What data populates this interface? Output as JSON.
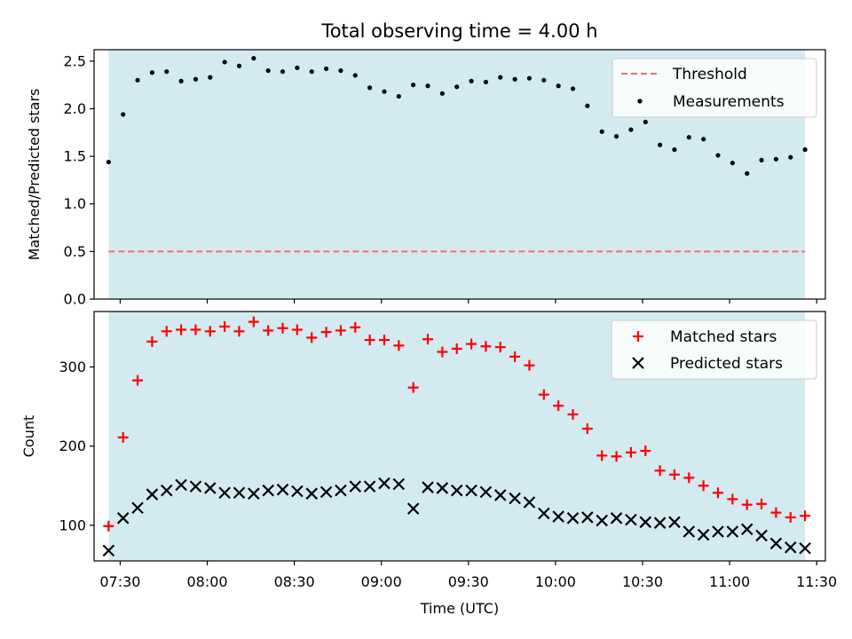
{
  "chart_data": {
    "title": "Total observing time = 4.00 h",
    "xlabel": "Time (UTC)",
    "x_tick_labels": [
      "07:30",
      "08:00",
      "08:30",
      "09:00",
      "09:30",
      "10:00",
      "10:30",
      "11:00",
      "11:30"
    ],
    "shaded_span": [
      "07:26",
      "11:26"
    ],
    "shade_color": "#d3eaf0",
    "panels": [
      {
        "type": "scatter",
        "ylabel": "Matched/Predicted stars",
        "ylim": [
          0,
          2.62
        ],
        "y_ticks": [
          0.0,
          0.5,
          1.0,
          1.5,
          2.0,
          2.5
        ],
        "y_tick_labels": [
          "0.0",
          "0.5",
          "1.0",
          "1.5",
          "2.0",
          "2.5"
        ],
        "legend": [
          "Threshold",
          "Measurements"
        ],
        "threshold": {
          "name": "Threshold",
          "y": 0.5,
          "x": [
            "07:26",
            "11:26"
          ],
          "color": "#f07070",
          "style": "dashed"
        },
        "series": [
          {
            "name": "Measurements",
            "marker": "dot",
            "color": "#000000",
            "x": [
              "07:26",
              "07:31",
              "07:36",
              "07:41",
              "07:46",
              "07:51",
              "07:56",
              "08:01",
              "08:06",
              "08:11",
              "08:16",
              "08:21",
              "08:26",
              "08:31",
              "08:36",
              "08:41",
              "08:46",
              "08:51",
              "08:56",
              "09:01",
              "09:06",
              "09:11",
              "09:16",
              "09:21",
              "09:26",
              "09:31",
              "09:36",
              "09:41",
              "09:46",
              "09:51",
              "09:56",
              "10:01",
              "10:06",
              "10:11",
              "10:16",
              "10:21",
              "10:26",
              "10:31",
              "10:36",
              "10:41",
              "10:46",
              "10:51",
              "10:56",
              "11:01",
              "11:06",
              "11:11",
              "11:16",
              "11:21",
              "11:26"
            ],
            "y": [
              1.44,
              1.94,
              2.3,
              2.38,
              2.39,
              2.29,
              2.31,
              2.33,
              2.49,
              2.45,
              2.53,
              2.4,
              2.39,
              2.43,
              2.39,
              2.42,
              2.4,
              2.35,
              2.22,
              2.18,
              2.13,
              2.25,
              2.24,
              2.16,
              2.23,
              2.29,
              2.28,
              2.33,
              2.31,
              2.32,
              2.3,
              2.24,
              2.21,
              2.03,
              1.76,
              1.71,
              1.78,
              1.86,
              1.62,
              1.57,
              1.7,
              1.68,
              1.51,
              1.43,
              1.32,
              1.46,
              1.47,
              1.49,
              1.57
            ]
          }
        ]
      },
      {
        "type": "scatter",
        "ylabel": "Count",
        "ylim": [
          55,
          370
        ],
        "y_ticks": [
          100,
          200,
          300
        ],
        "y_tick_labels": [
          "100",
          "200",
          "300"
        ],
        "legend": [
          "Matched stars",
          "Predicted stars"
        ],
        "series": [
          {
            "name": "Matched stars",
            "marker": "plus",
            "color": "#ff0000",
            "x": [
              "07:26",
              "07:31",
              "07:36",
              "07:41",
              "07:46",
              "07:51",
              "07:56",
              "08:01",
              "08:06",
              "08:11",
              "08:16",
              "08:21",
              "08:26",
              "08:31",
              "08:36",
              "08:41",
              "08:46",
              "08:51",
              "08:56",
              "09:01",
              "09:06",
              "09:11",
              "09:16",
              "09:21",
              "09:26",
              "09:31",
              "09:36",
              "09:41",
              "09:46",
              "09:51",
              "09:56",
              "10:01",
              "10:06",
              "10:11",
              "10:16",
              "10:21",
              "10:26",
              "10:31",
              "10:36",
              "10:41",
              "10:46",
              "10:51",
              "10:56",
              "11:01",
              "11:06",
              "11:11",
              "11:16",
              "11:21",
              "11:26"
            ],
            "y": [
              99,
              211,
              283,
              332,
              345,
              347,
              347,
              345,
              351,
              345,
              357,
              346,
              349,
              347,
              337,
              344,
              346,
              350,
              334,
              334,
              327,
              274,
              335,
              319,
              323,
              329,
              326,
              325,
              313,
              302,
              265,
              251,
              240,
              222,
              188,
              187,
              192,
              194,
              169,
              164,
              160,
              150,
              141,
              133,
              126,
              127,
              116,
              110,
              112
            ]
          },
          {
            "name": "Predicted stars",
            "marker": "x",
            "color": "#000000",
            "x": [
              "07:26",
              "07:31",
              "07:36",
              "07:41",
              "07:46",
              "07:51",
              "07:56",
              "08:01",
              "08:06",
              "08:11",
              "08:16",
              "08:21",
              "08:26",
              "08:31",
              "08:36",
              "08:41",
              "08:46",
              "08:51",
              "08:56",
              "09:01",
              "09:06",
              "09:11",
              "09:16",
              "09:21",
              "09:26",
              "09:31",
              "09:36",
              "09:41",
              "09:46",
              "09:51",
              "09:56",
              "10:01",
              "10:06",
              "10:11",
              "10:16",
              "10:21",
              "10:26",
              "10:31",
              "10:36",
              "10:41",
              "10:46",
              "10:51",
              "10:56",
              "11:01",
              "11:06",
              "11:11",
              "11:16",
              "11:21",
              "11:26"
            ],
            "y": [
              68,
              109,
              122,
              139,
              144,
              151,
              149,
              147,
              141,
              141,
              140,
              144,
              145,
              143,
              140,
              142,
              144,
              149,
              149,
              153,
              152,
              121,
              148,
              147,
              144,
              144,
              142,
              138,
              134,
              129,
              115,
              111,
              109,
              110,
              106,
              109,
              107,
              104,
              103,
              104,
              92,
              88,
              92,
              92,
              95,
              87,
              77,
              72,
              71
            ]
          }
        ]
      }
    ]
  }
}
